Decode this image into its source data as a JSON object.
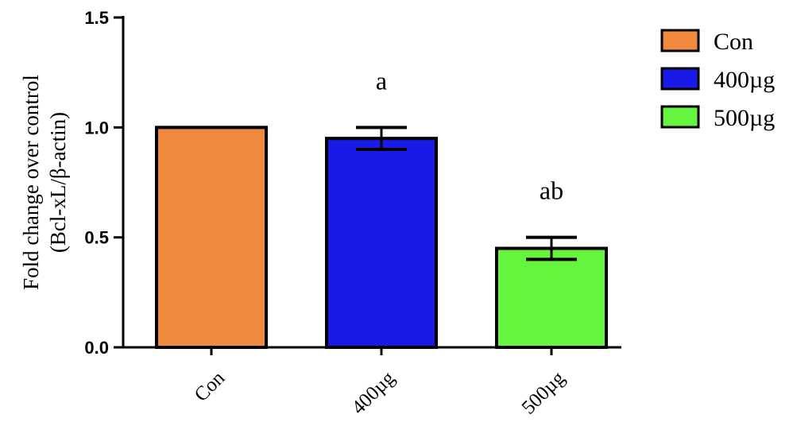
{
  "chart_data": {
    "type": "bar",
    "title": "",
    "ylabel": [
      "Fold change over control",
      "(Bcl-xL/β-actin)"
    ],
    "xlabel": "",
    "categories": [
      "Con",
      "400µg",
      "500µg"
    ],
    "values": [
      1.0,
      0.95,
      0.45
    ],
    "errors": [
      0,
      0.05,
      0.05
    ],
    "annotations": [
      "",
      "a",
      "ab"
    ],
    "colors": [
      "#F0893D",
      "#1A1AE6",
      "#66F53F"
    ],
    "ylim": [
      0,
      1.5
    ],
    "yticks": [
      0.0,
      0.5,
      1.0,
      1.5
    ],
    "ytick_labels": [
      "0.0",
      "0.5",
      "1.0",
      "1.5"
    ],
    "legend": {
      "placement": "top-right",
      "entries": [
        {
          "label": "Con",
          "color": "#F0893D"
        },
        {
          "label": "400µg",
          "color": "#1A1AE6"
        },
        {
          "label": "500µg",
          "color": "#66F53F"
        }
      ]
    },
    "grid": false
  }
}
